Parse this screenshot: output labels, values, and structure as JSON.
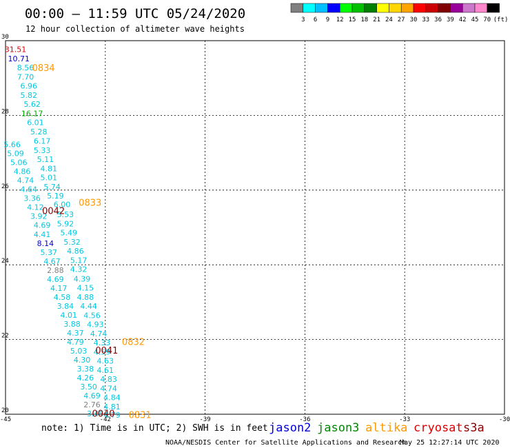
{
  "header": {
    "title": "00:00 — 11:59 UTC 05/24/2020",
    "subtitle": "12 hour collection of altimeter wave heights"
  },
  "colorbar": {
    "labels": [
      "3",
      "6",
      "9",
      "12",
      "15",
      "18",
      "21",
      "24",
      "27",
      "30",
      "33",
      "36",
      "39",
      "42",
      "45",
      "70",
      "(ft)"
    ],
    "colors": [
      "#808080",
      "#00ffff",
      "#00bfff",
      "#0000ff",
      "#00ff00",
      "#00c000",
      "#008000",
      "#ffff00",
      "#ffd700",
      "#ffa500",
      "#ff0000",
      "#cc0000",
      "#800000",
      "#990099",
      "#cc77cc",
      "#ff88cc",
      "#000000"
    ]
  },
  "footer": {
    "note": "note: 1) Time is in UTC; 2) SWH is in feet",
    "credit": "NOAA/NESDIS Center for Satellite Applications and Research",
    "timestamp": "May 25 12:27:14 UTC 2020"
  },
  "legend": [
    {
      "label": "jason2",
      "color": "#0000dd"
    },
    {
      "label": "jason3",
      "color": "#008800"
    },
    {
      "label": "altika",
      "color": "#ff9900"
    },
    {
      "label": "cryosat",
      "color": "#dd0000"
    },
    {
      "label": "s3a",
      "color": "#880000"
    }
  ],
  "chart_data": {
    "type": "scatter",
    "xlim": [
      -45,
      -30
    ],
    "ylim": [
      20,
      30
    ],
    "x_ticks": [
      "-45",
      "-42",
      "-39",
      "-36",
      "-33",
      "-30"
    ],
    "y_ticks": [
      "20",
      "22",
      "24",
      "26",
      "28",
      "30"
    ],
    "grid": true,
    "points": [
      {
        "lon": -44.7,
        "lat": 29.77,
        "value": "31.51",
        "color": "#dd0000"
      },
      {
        "lon": -44.6,
        "lat": 29.52,
        "value": "10.71",
        "color": "#0000dd"
      },
      {
        "lon": -44.4,
        "lat": 29.28,
        "value": "8.56",
        "color": "#00c8e0"
      },
      {
        "lon": -44.4,
        "lat": 29.03,
        "value": "7.70",
        "color": "#00c8e0"
      },
      {
        "lon": -44.3,
        "lat": 28.79,
        "value": "6.96",
        "color": "#00c8e0"
      },
      {
        "lon": -44.3,
        "lat": 28.54,
        "value": "5.82",
        "color": "#00c8e0"
      },
      {
        "lon": -44.2,
        "lat": 28.3,
        "value": "5.62",
        "color": "#00c8e0"
      },
      {
        "lon": -44.2,
        "lat": 28.05,
        "value": "16.17",
        "color": "#00aa00"
      },
      {
        "lon": -44.1,
        "lat": 27.81,
        "value": "6.01",
        "color": "#00c8e0"
      },
      {
        "lon": -44.0,
        "lat": 27.56,
        "value": "5.28",
        "color": "#00c8e0"
      },
      {
        "lon": -43.9,
        "lat": 27.32,
        "value": "6.17",
        "color": "#00c8e0"
      },
      {
        "lon": -43.9,
        "lat": 27.07,
        "value": "5.33",
        "color": "#00c8e0"
      },
      {
        "lon": -43.8,
        "lat": 26.83,
        "value": "5.11",
        "color": "#00c8e0"
      },
      {
        "lon": -43.7,
        "lat": 26.58,
        "value": "4.81",
        "color": "#00c8e0"
      },
      {
        "lon": -43.7,
        "lat": 26.34,
        "value": "5.01",
        "color": "#00c8e0"
      },
      {
        "lon": -43.6,
        "lat": 26.09,
        "value": "5.74",
        "color": "#00c8e0"
      },
      {
        "lon": -43.5,
        "lat": 25.85,
        "value": "5.19",
        "color": "#00c8e0"
      },
      {
        "lon": -43.3,
        "lat": 25.62,
        "value": "6.00",
        "color": "#00c8e0"
      },
      {
        "lon": -43.2,
        "lat": 25.35,
        "value": "5.53",
        "color": "#00c8e0"
      },
      {
        "lon": -43.2,
        "lat": 25.1,
        "value": "5.92",
        "color": "#00c8e0"
      },
      {
        "lon": -43.1,
        "lat": 24.86,
        "value": "5.49",
        "color": "#00c8e0"
      },
      {
        "lon": -43.0,
        "lat": 24.61,
        "value": "5.32",
        "color": "#00c8e0"
      },
      {
        "lon": -42.9,
        "lat": 24.37,
        "value": "4.86",
        "color": "#00c8e0"
      },
      {
        "lon": -42.8,
        "lat": 24.12,
        "value": "5.17",
        "color": "#00c8e0"
      },
      {
        "lon": -42.8,
        "lat": 23.88,
        "value": "4.32",
        "color": "#00c8e0"
      },
      {
        "lon": -42.7,
        "lat": 23.63,
        "value": "4.39",
        "color": "#00c8e0"
      },
      {
        "lon": -42.6,
        "lat": 23.39,
        "value": "4.15",
        "color": "#00c8e0"
      },
      {
        "lon": -42.6,
        "lat": 23.14,
        "value": "4.88",
        "color": "#00c8e0"
      },
      {
        "lon": -42.5,
        "lat": 22.9,
        "value": "4.44",
        "color": "#00c8e0"
      },
      {
        "lon": -42.4,
        "lat": 22.65,
        "value": "4.56",
        "color": "#00c8e0"
      },
      {
        "lon": -42.3,
        "lat": 22.41,
        "value": "4.93",
        "color": "#00c8e0"
      },
      {
        "lon": -42.2,
        "lat": 22.16,
        "value": "4.74",
        "color": "#00c8e0"
      },
      {
        "lon": -42.1,
        "lat": 21.92,
        "value": "4.33",
        "color": "#00c8e0"
      },
      {
        "lon": -42.1,
        "lat": 21.67,
        "value": "4.59",
        "color": "#00c8e0"
      },
      {
        "lon": -42.0,
        "lat": 21.43,
        "value": "4.63",
        "color": "#00c8e0"
      },
      {
        "lon": -42.0,
        "lat": 21.18,
        "value": "4.61",
        "color": "#00c8e0"
      },
      {
        "lon": -41.9,
        "lat": 20.94,
        "value": "4.83",
        "color": "#00c8e0"
      },
      {
        "lon": -41.9,
        "lat": 20.69,
        "value": "4.74",
        "color": "#00c8e0"
      },
      {
        "lon": -41.8,
        "lat": 20.45,
        "value": "4.84",
        "color": "#00c8e0"
      },
      {
        "lon": -41.8,
        "lat": 20.2,
        "value": "4.81",
        "color": "#00c8e0"
      },
      {
        "lon": -41.8,
        "lat": 19.98,
        "value": "4.79",
        "color": "#00c8e0"
      },
      {
        "lon": -44.8,
        "lat": 27.22,
        "value": "5.66",
        "color": "#00c8e0"
      },
      {
        "lon": -44.7,
        "lat": 26.98,
        "value": "5.09",
        "color": "#00c8e0"
      },
      {
        "lon": -44.6,
        "lat": 26.74,
        "value": "5.06",
        "color": "#00c8e0"
      },
      {
        "lon": -44.5,
        "lat": 26.5,
        "value": "4.86",
        "color": "#00c8e0"
      },
      {
        "lon": -44.4,
        "lat": 26.26,
        "value": "4.74",
        "color": "#00c8e0"
      },
      {
        "lon": -44.3,
        "lat": 26.02,
        "value": "4.64",
        "color": "#00c8e0"
      },
      {
        "lon": -44.2,
        "lat": 25.78,
        "value": "3.36",
        "color": "#00c8e0"
      },
      {
        "lon": -44.1,
        "lat": 25.54,
        "value": "4.12",
        "color": "#00c8e0"
      },
      {
        "lon": -44.0,
        "lat": 25.3,
        "value": "3.92",
        "color": "#00c8e0"
      },
      {
        "lon": -43.9,
        "lat": 25.06,
        "value": "4.69",
        "color": "#00c8e0"
      },
      {
        "lon": -43.9,
        "lat": 24.82,
        "value": "4.41",
        "color": "#00c8e0"
      },
      {
        "lon": -43.8,
        "lat": 24.58,
        "value": "8.14",
        "color": "#0000dd"
      },
      {
        "lon": -43.7,
        "lat": 24.34,
        "value": "5.37",
        "color": "#00c8e0"
      },
      {
        "lon": -43.6,
        "lat": 24.1,
        "value": "4.67",
        "color": "#00c8e0"
      },
      {
        "lon": -43.5,
        "lat": 23.86,
        "value": "2.88",
        "color": "#808080"
      },
      {
        "lon": -43.5,
        "lat": 23.62,
        "value": "4.69",
        "color": "#00c8e0"
      },
      {
        "lon": -43.4,
        "lat": 23.38,
        "value": "4.17",
        "color": "#00c8e0"
      },
      {
        "lon": -43.3,
        "lat": 23.14,
        "value": "4.58",
        "color": "#00c8e0"
      },
      {
        "lon": -43.2,
        "lat": 22.9,
        "value": "3.84",
        "color": "#00c8e0"
      },
      {
        "lon": -43.1,
        "lat": 22.66,
        "value": "4.01",
        "color": "#00c8e0"
      },
      {
        "lon": -43.0,
        "lat": 22.42,
        "value": "3.88",
        "color": "#00c8e0"
      },
      {
        "lon": -42.9,
        "lat": 22.18,
        "value": "4.37",
        "color": "#00c8e0"
      },
      {
        "lon": -42.9,
        "lat": 21.94,
        "value": "4.79",
        "color": "#00c8e0"
      },
      {
        "lon": -42.8,
        "lat": 21.7,
        "value": "5.03",
        "color": "#00c8e0"
      },
      {
        "lon": -42.7,
        "lat": 21.46,
        "value": "4.30",
        "color": "#00c8e0"
      },
      {
        "lon": -42.6,
        "lat": 21.22,
        "value": "3.38",
        "color": "#00c8e0"
      },
      {
        "lon": -42.6,
        "lat": 20.98,
        "value": "4.26",
        "color": "#00c8e0"
      },
      {
        "lon": -42.5,
        "lat": 20.74,
        "value": "3.50",
        "color": "#00c8e0"
      },
      {
        "lon": -42.4,
        "lat": 20.5,
        "value": "4.69",
        "color": "#00c8e0"
      },
      {
        "lon": -42.4,
        "lat": 20.26,
        "value": "2.76",
        "color": "#808080"
      },
      {
        "lon": -42.3,
        "lat": 20.02,
        "value": "3.45",
        "color": "#00c8e0"
      }
    ],
    "time_labels": [
      {
        "lon": -44.2,
        "lat": 29.28,
        "text": "0834",
        "color": "#ff9900"
      },
      {
        "lon": -42.8,
        "lat": 25.67,
        "text": "0833",
        "color": "#ff9900"
      },
      {
        "lon": -43.9,
        "lat": 25.45,
        "text": "0042",
        "color": "#880000"
      },
      {
        "lon": -41.5,
        "lat": 21.95,
        "text": "0832",
        "color": "#ff9900"
      },
      {
        "lon": -42.3,
        "lat": 21.72,
        "text": "0041",
        "color": "#880000"
      },
      {
        "lon": -41.3,
        "lat": 19.99,
        "text": "0831",
        "color": "#ff9900"
      },
      {
        "lon": -42.4,
        "lat": 20.03,
        "text": "0040",
        "color": "#880000"
      }
    ]
  }
}
